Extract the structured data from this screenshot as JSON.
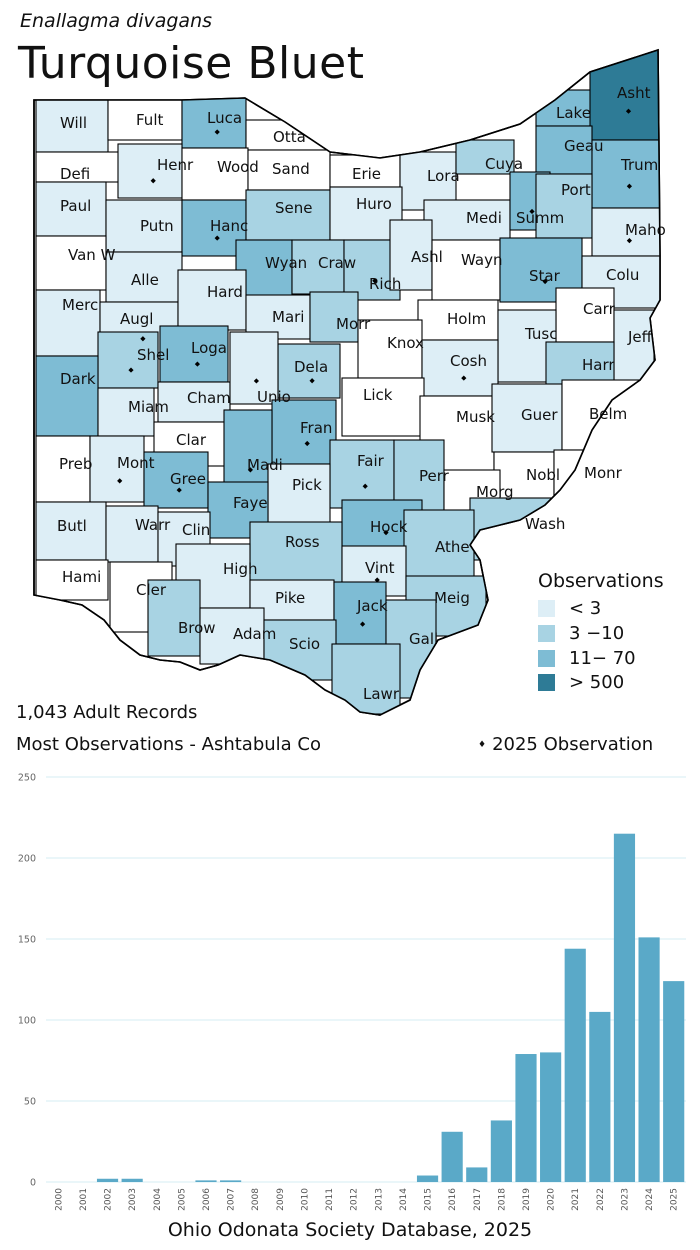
{
  "species": {
    "scientific_name": "Enallagma divagans",
    "common_name": "Turquoise Bluet"
  },
  "colors": {
    "none": "#ffffff",
    "lt3": "#ddeef6",
    "r3to10": "#a8d3e3",
    "r11to70": "#7ebcd4",
    "gt500": "#2e7b96",
    "bar": "#5aa9c8",
    "grid": "#d6ecf3"
  },
  "legend": {
    "title": "Observations",
    "items": [
      {
        "label": "< 3",
        "color_key": "lt3"
      },
      {
        "label": "3 −10",
        "color_key": "r3to10"
      },
      {
        "label": "11− 70",
        "color_key": "r11to70"
      },
      {
        "label": "> 500",
        "color_key": "gt500"
      }
    ],
    "marker_label": "2025  Observation",
    "marker_symbol": "♦"
  },
  "stats": {
    "records": "1,043 Adult Records",
    "most": "Most Observations - Ashtabula Co"
  },
  "counties": [
    {
      "name": "Will",
      "level": "lt3",
      "dot": false
    },
    {
      "name": "Fult",
      "level": "none",
      "dot": false
    },
    {
      "name": "Luca",
      "level": "r11to70",
      "dot": true
    },
    {
      "name": "Otta",
      "level": "none",
      "dot": false
    },
    {
      "name": "Defi",
      "level": "none",
      "dot": false
    },
    {
      "name": "Henr",
      "level": "lt3",
      "dot": true
    },
    {
      "name": "Wood",
      "level": "none",
      "dot": false
    },
    {
      "name": "Sand",
      "level": "none",
      "dot": false
    },
    {
      "name": "Erie",
      "level": "none",
      "dot": false
    },
    {
      "name": "Lora",
      "level": "lt3",
      "dot": false
    },
    {
      "name": "Cuya",
      "level": "r3to10",
      "dot": false
    },
    {
      "name": "Lake",
      "level": "r11to70",
      "dot": false
    },
    {
      "name": "Asht",
      "level": "gt500",
      "dot": true
    },
    {
      "name": "Geau",
      "level": "r11to70",
      "dot": false
    },
    {
      "name": "Trum",
      "level": "r11to70",
      "dot": true
    },
    {
      "name": "Paul",
      "level": "lt3",
      "dot": false
    },
    {
      "name": "Putn",
      "level": "lt3",
      "dot": false
    },
    {
      "name": "Hanc",
      "level": "r11to70",
      "dot": true
    },
    {
      "name": "Sene",
      "level": "r3to10",
      "dot": false
    },
    {
      "name": "Huro",
      "level": "lt3",
      "dot": false
    },
    {
      "name": "Medi",
      "level": "lt3",
      "dot": false
    },
    {
      "name": "Summ",
      "level": "r11to70",
      "dot": true
    },
    {
      "name": "Port",
      "level": "r3to10",
      "dot": false
    },
    {
      "name": "Maho",
      "level": "lt3",
      "dot": true
    },
    {
      "name": "Van W",
      "level": "none",
      "dot": false
    },
    {
      "name": "Alle",
      "level": "lt3",
      "dot": false
    },
    {
      "name": "Wyan",
      "level": "r11to70",
      "dot": false
    },
    {
      "name": "Craw",
      "level": "r3to10",
      "dot": false
    },
    {
      "name": "Rich",
      "level": "r3to10",
      "dot": true
    },
    {
      "name": "Ashl",
      "level": "lt3",
      "dot": false
    },
    {
      "name": "Wayn",
      "level": "none",
      "dot": false
    },
    {
      "name": "Star",
      "level": "r11to70",
      "dot": true
    },
    {
      "name": "Colu",
      "level": "lt3",
      "dot": false
    },
    {
      "name": "Merc",
      "level": "lt3",
      "dot": false
    },
    {
      "name": "Augl",
      "level": "lt3",
      "dot": true
    },
    {
      "name": "Hard",
      "level": "lt3",
      "dot": false
    },
    {
      "name": "Mari",
      "level": "lt3",
      "dot": false
    },
    {
      "name": "Morr",
      "level": "r3to10",
      "dot": false
    },
    {
      "name": "Holm",
      "level": "none",
      "dot": false
    },
    {
      "name": "Carr",
      "level": "none",
      "dot": false
    },
    {
      "name": "Tusc",
      "level": "lt3",
      "dot": false
    },
    {
      "name": "Jeff",
      "level": "lt3",
      "dot": false
    },
    {
      "name": "Shel",
      "level": "r3to10",
      "dot": true
    },
    {
      "name": "Loga",
      "level": "r11to70",
      "dot": true
    },
    {
      "name": "Knox",
      "level": "none",
      "dot": false
    },
    {
      "name": "Dela",
      "level": "r3to10",
      "dot": true
    },
    {
      "name": "Cosh",
      "level": "lt3",
      "dot": true
    },
    {
      "name": "Harr",
      "level": "r3to10",
      "dot": false
    },
    {
      "name": "Dark",
      "level": "r11to70",
      "dot": false
    },
    {
      "name": "Miam",
      "level": "lt3",
      "dot": false
    },
    {
      "name": "Cham",
      "level": "lt3",
      "dot": false
    },
    {
      "name": "Unio",
      "level": "lt3",
      "dot": true
    },
    {
      "name": "Lick",
      "level": "none",
      "dot": false
    },
    {
      "name": "Musk",
      "level": "none",
      "dot": false
    },
    {
      "name": "Guer",
      "level": "lt3",
      "dot": false
    },
    {
      "name": "Belm",
      "level": "none",
      "dot": false
    },
    {
      "name": "Clar",
      "level": "none",
      "dot": false
    },
    {
      "name": "Fran",
      "level": "r11to70",
      "dot": true
    },
    {
      "name": "Madi",
      "level": "r11to70",
      "dot": true
    },
    {
      "name": "Fair",
      "level": "r3to10",
      "dot": true
    },
    {
      "name": "Perr",
      "level": "r3to10",
      "dot": false
    },
    {
      "name": "Preb",
      "level": "none",
      "dot": false
    },
    {
      "name": "Mont",
      "level": "lt3",
      "dot": true
    },
    {
      "name": "Gree",
      "level": "r11to70",
      "dot": true
    },
    {
      "name": "Pick",
      "level": "lt3",
      "dot": false
    },
    {
      "name": "Nobl",
      "level": "none",
      "dot": false
    },
    {
      "name": "Monr",
      "level": "none",
      "dot": false
    },
    {
      "name": "Morg",
      "level": "none",
      "dot": false
    },
    {
      "name": "Faye",
      "level": "r11to70",
      "dot": false
    },
    {
      "name": "Hock",
      "level": "r11to70",
      "dot": true
    },
    {
      "name": "Wash",
      "level": "r3to10",
      "dot": false
    },
    {
      "name": "Butl",
      "level": "lt3",
      "dot": false
    },
    {
      "name": "Warr",
      "level": "lt3",
      "dot": false
    },
    {
      "name": "Clin",
      "level": "lt3",
      "dot": false
    },
    {
      "name": "Ross",
      "level": "r3to10",
      "dot": false
    },
    {
      "name": "Athe",
      "level": "r3to10",
      "dot": false
    },
    {
      "name": "Hami",
      "level": "none",
      "dot": false
    },
    {
      "name": "Cler",
      "level": "none",
      "dot": false
    },
    {
      "name": "High",
      "level": "lt3",
      "dot": false
    },
    {
      "name": "Vint",
      "level": "lt3",
      "dot": true
    },
    {
      "name": "Meig",
      "level": "r3to10",
      "dot": false
    },
    {
      "name": "Pike",
      "level": "lt3",
      "dot": false
    },
    {
      "name": "Jack",
      "level": "r11to70",
      "dot": true
    },
    {
      "name": "Brow",
      "level": "r3to10",
      "dot": false
    },
    {
      "name": "Adam",
      "level": "lt3",
      "dot": false
    },
    {
      "name": "Scio",
      "level": "r3to10",
      "dot": false
    },
    {
      "name": "Gall",
      "level": "r3to10",
      "dot": false
    },
    {
      "name": "Lawr",
      "level": "r3to10",
      "dot": false
    }
  ],
  "chart_data": {
    "type": "bar",
    "title": "",
    "xlabel": "",
    "ylabel": "",
    "ylim": [
      0,
      250
    ],
    "yticks": [
      0,
      50,
      100,
      150,
      200,
      250
    ],
    "grid": true,
    "categories": [
      "2000",
      "2001",
      "2002",
      "2003",
      "2004",
      "2005",
      "2006",
      "2007",
      "2008",
      "2009",
      "2010",
      "2011",
      "2012",
      "2013",
      "2014",
      "2015",
      "2016",
      "2017",
      "2018",
      "2019",
      "2020",
      "2021",
      "2022",
      "2023",
      "2024",
      "2025"
    ],
    "values": [
      0,
      0,
      2,
      2,
      0,
      0,
      1,
      1,
      0,
      0,
      0,
      0,
      0,
      0,
      0,
      4,
      31,
      9,
      38,
      79,
      80,
      144,
      105,
      215,
      151,
      124
    ]
  },
  "footer": "Ohio Odonata Society Database, 2025"
}
